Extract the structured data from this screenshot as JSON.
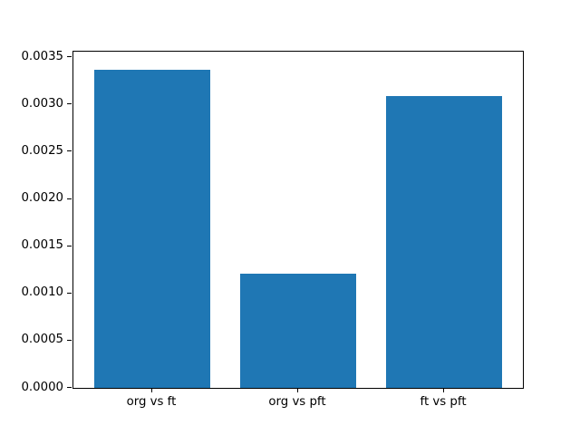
{
  "chart_data": {
    "type": "bar",
    "categories": [
      "org vs ft",
      "org vs pft",
      "ft vs pft"
    ],
    "values": [
      0.00337,
      0.00121,
      0.00309
    ],
    "title": "",
    "xlabel": "",
    "ylabel": "",
    "ylim": [
      0,
      0.00356
    ],
    "xlim": [
      -0.54,
      2.54
    ],
    "bar_width": 0.8,
    "yticks": [
      0.0,
      0.0005,
      0.001,
      0.0015,
      0.002,
      0.0025,
      0.003,
      0.0035
    ],
    "ytick_labels": [
      "0.0000",
      "0.0005",
      "0.0010",
      "0.0015",
      "0.0020",
      "0.0025",
      "0.0030",
      "0.0035"
    ],
    "grid": false,
    "legend": false,
    "colors": {
      "bar": "#1f77b4",
      "spine": "#000000",
      "text": "#000000",
      "background": "#ffffff"
    }
  }
}
